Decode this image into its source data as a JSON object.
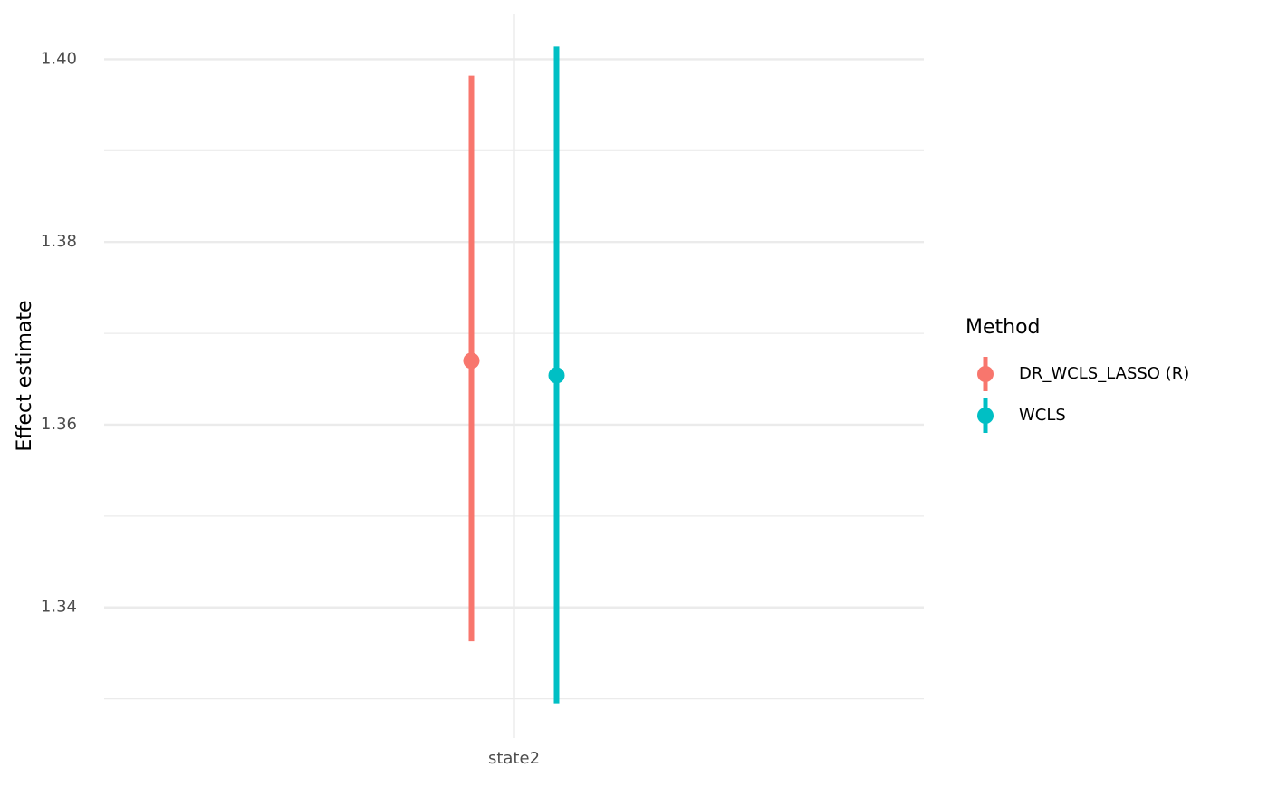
{
  "chart_data": {
    "type": "pointrange",
    "y_label": "Effect estimate",
    "legend_title": "Method",
    "categories": [
      "state2"
    ],
    "series": [
      {
        "name": "DR_WCLS_LASSO (R)",
        "color": "#f8766d",
        "values": [
          1.367
        ],
        "lower": [
          1.3363
        ],
        "upper": [
          1.3982
        ]
      },
      {
        "name": "WCLS",
        "color": "#00bfc4",
        "values": [
          1.3654
        ],
        "lower": [
          1.3295
        ],
        "upper": [
          1.4014
        ]
      }
    ],
    "ylim": [
      1.3257,
      1.405
    ],
    "yticks": [
      {
        "value": 1.34,
        "label": "1.34"
      },
      {
        "value": 1.36,
        "label": "1.36"
      },
      {
        "value": 1.38,
        "label": "1.38"
      },
      {
        "value": 1.4,
        "label": "1.40"
      }
    ],
    "grid": true,
    "legend": "right"
  }
}
